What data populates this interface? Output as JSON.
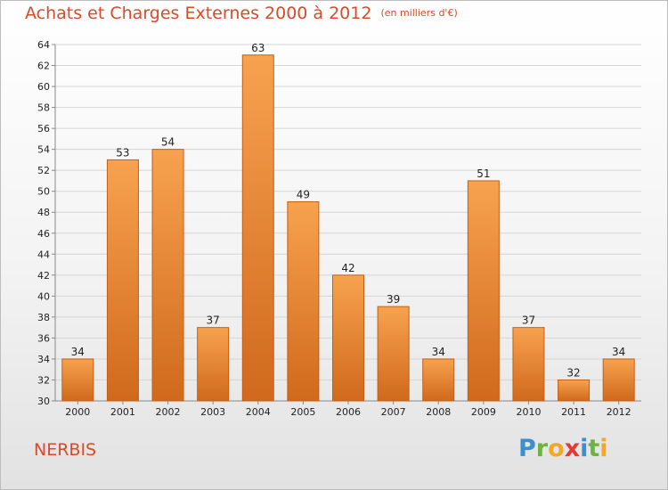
{
  "header": {
    "title": "Achats et Charges Externes 2000 à 2012",
    "subtitle": "(en milliers d'€)"
  },
  "footer": {
    "location": "NERBIS",
    "brand": "Proxiti",
    "brand_letters": [
      {
        "ch": "P",
        "color": "#3a8fd0"
      },
      {
        "ch": "r",
        "color": "#6db33f"
      },
      {
        "ch": "o",
        "color": "#f5a623"
      },
      {
        "ch": "x",
        "color": "#e53935"
      },
      {
        "ch": "i",
        "color": "#3a8fd0"
      },
      {
        "ch": "t",
        "color": "#6db33f"
      },
      {
        "ch": "i",
        "color": "#f5a623"
      }
    ]
  },
  "colors": {
    "bar_top": "#f7a24f",
    "bar_bottom": "#d0691c",
    "bar_edge": "#c35e15",
    "grid": "#d5d5d5",
    "title": "#d84a2a"
  },
  "chart_data": {
    "type": "bar",
    "title": "Achats et Charges Externes 2000 à 2012",
    "subtitle": "(en milliers d'€)",
    "xlabel": "",
    "ylabel": "",
    "categories": [
      "2000",
      "2001",
      "2002",
      "2003",
      "2004",
      "2005",
      "2006",
      "2007",
      "2008",
      "2009",
      "2010",
      "2011",
      "2012"
    ],
    "values": [
      34,
      53,
      54,
      37,
      63,
      49,
      42,
      39,
      34,
      51,
      37,
      32,
      34
    ],
    "ylim": [
      30,
      64
    ],
    "yticks": [
      30,
      32,
      34,
      36,
      38,
      40,
      42,
      44,
      46,
      48,
      50,
      52,
      54,
      56,
      58,
      60,
      62,
      64
    ],
    "grid": true,
    "legend": "none"
  }
}
